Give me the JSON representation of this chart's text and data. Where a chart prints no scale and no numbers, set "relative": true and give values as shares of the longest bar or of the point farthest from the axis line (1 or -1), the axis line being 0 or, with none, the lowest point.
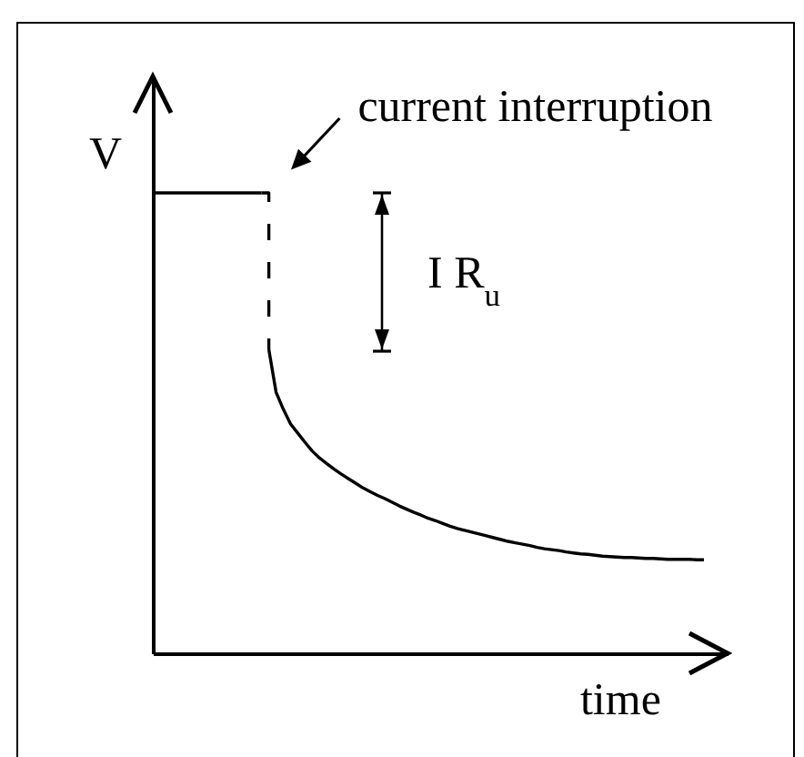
{
  "chart_data": {
    "type": "line",
    "relative": true,
    "xlabel": "time",
    "ylabel": "V",
    "annotations": [
      "current interruption",
      "I R$_{u}$"
    ],
    "categories": [
      null,
      null,
      null,
      null,
      null,
      null,
      null,
      null,
      null,
      null,
      null,
      null,
      null,
      null,
      null,
      null,
      null,
      null,
      null,
      null,
      null,
      null,
      null,
      null,
      null,
      null,
      null,
      null,
      null,
      null,
      null,
      null,
      null,
      null,
      null,
      null,
      null,
      null,
      null,
      null,
      null,
      null,
      null,
      null,
      null,
      null,
      null,
      null,
      null,
      null,
      null,
      null,
      null,
      null,
      null,
      null,
      null,
      null,
      null,
      null,
      null,
      null,
      null,
      null,
      null,
      null,
      null,
      null,
      null,
      null,
      null,
      null,
      null,
      null,
      null,
      null,
      null
    ],
    "series": [
      {
        "type": "line",
        "color": "#000000",
        "values": [
          1,
          1,
          1,
          1,
          1,
          1,
          1,
          1,
          1,
          1,
          1,
          1,
          1,
          1,
          1,
          1,
          null,
          null,
          null,
          null,
          null,
          null,
          null,
          null,
          null,
          null,
          null,
          null,
          null,
          null,
          null,
          null,
          null,
          null,
          null,
          null,
          null,
          null,
          null,
          null,
          null,
          null,
          null,
          null,
          null,
          null,
          null,
          null,
          null,
          null,
          null,
          null,
          null,
          null,
          null,
          null,
          null,
          null,
          null,
          null,
          null,
          null,
          null,
          null,
          null,
          null,
          null,
          null,
          null,
          null,
          null,
          null,
          null,
          null,
          null,
          null,
          null
        ]
      },
      {
        "type": "step",
        "line_style": "dashed",
        "color": "#000000",
        "values": [
          null,
          null,
          null,
          null,
          null,
          null,
          null,
          null,
          null,
          null,
          null,
          null,
          null,
          null,
          null,
          1,
          0.66,
          null,
          null,
          null,
          null,
          null,
          null,
          null,
          null,
          null,
          null,
          null,
          null,
          null,
          null,
          null,
          null,
          null,
          null,
          null,
          null,
          null,
          null,
          null,
          null,
          null,
          null,
          null,
          null,
          null,
          null,
          null,
          null,
          null,
          null,
          null,
          null,
          null,
          null,
          null,
          null,
          null,
          null,
          null,
          null,
          null,
          null,
          null,
          null,
          null,
          null,
          null,
          null,
          null,
          null,
          null,
          null,
          null,
          null,
          null,
          null
        ]
      },
      {
        "type": "line",
        "color": "#000000",
        "values": [
          null,
          null,
          null,
          null,
          null,
          null,
          null,
          null,
          null,
          null,
          null,
          null,
          null,
          null,
          null,
          null,
          0.66,
          0.567,
          0.53,
          0.498,
          0.478,
          0.458,
          0.439,
          0.424,
          0.412,
          0.4,
          0.389,
          0.379,
          0.369,
          0.359,
          0.351,
          0.343,
          0.336,
          0.328,
          0.32,
          0.313,
          0.306,
          0.3,
          0.293,
          0.288,
          0.282,
          0.276,
          0.271,
          0.267,
          0.263,
          0.259,
          0.255,
          0.251,
          0.247,
          0.243,
          0.24,
          0.237,
          0.234,
          0.23,
          0.227,
          0.225,
          0.223,
          0.22,
          0.218,
          0.216,
          0.215,
          0.213,
          0.211,
          0.21,
          0.209,
          0.208,
          0.208,
          0.207,
          0.206,
          0.206,
          0.205,
          0.204,
          0.204,
          0.204,
          0.204,
          0.203,
          0.203
        ]
      }
    ]
  }
}
